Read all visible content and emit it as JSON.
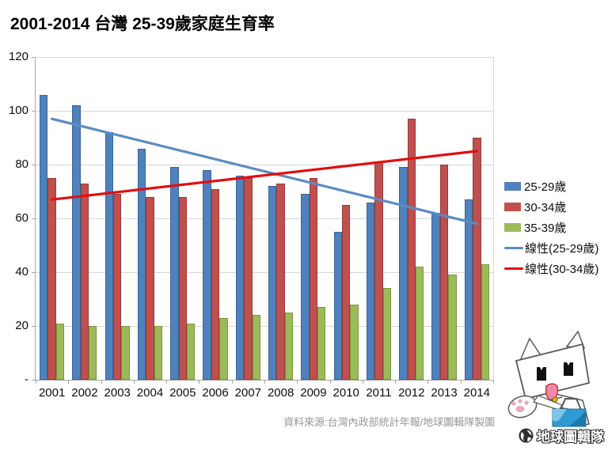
{
  "title": "2001-2014 台灣 25-39歲家庭生育率",
  "source_note": "資料來源:台灣內政部統計年報/地球圖輯隊製圖",
  "watermark": {
    "logo_text": "地球圖輯隊"
  },
  "colors": {
    "bar_blue": "#4F81BD",
    "bar_red": "#C0504D",
    "bar_green": "#9BBB59",
    "trend_blue": "#5B8BC4",
    "trend_red": "#E01010",
    "gridline": "#D6D6D6",
    "axis": "#A6A6A6",
    "source_text": "#969696"
  },
  "legend": {
    "items": [
      {
        "label": "25-29歲",
        "type": "bar",
        "color": "#4F81BD"
      },
      {
        "label": "30-34歲",
        "type": "bar",
        "color": "#C0504D"
      },
      {
        "label": "35-39歲",
        "type": "bar",
        "color": "#9BBB59"
      },
      {
        "label": "線性(25-29歲)",
        "type": "line",
        "color": "#5B8BC4"
      },
      {
        "label": "線性(30-34歲)",
        "type": "line",
        "color": "#E01010"
      }
    ]
  },
  "chart_data": {
    "type": "bar",
    "title": "2001-2014 台灣 25-39歲家庭生育率",
    "categories": [
      "2001",
      "2002",
      "2003",
      "2004",
      "2005",
      "2006",
      "2007",
      "2008",
      "2009",
      "2010",
      "2011",
      "2012",
      "2013",
      "2014"
    ],
    "series": [
      {
        "name": "25-29歲",
        "type": "bar",
        "color": "#4F81BD",
        "border": "#3B6596",
        "values": [
          106,
          102,
          92,
          86,
          79,
          78,
          76,
          72,
          69,
          55,
          66,
          79,
          62,
          67
        ]
      },
      {
        "name": "30-34歲",
        "type": "bar",
        "color": "#C0504D",
        "border": "#953C3A",
        "values": [
          75,
          73,
          69,
          68,
          68,
          71,
          75,
          73,
          75,
          65,
          81,
          97,
          80,
          90
        ]
      },
      {
        "name": "35-39歲",
        "type": "bar",
        "color": "#9BBB59",
        "border": "#79953F",
        "values": [
          21,
          20,
          20,
          20,
          21,
          23,
          24,
          25,
          27,
          28,
          34,
          42,
          39,
          43
        ]
      }
    ],
    "trendlines": [
      {
        "name": "線性(25-29歲)",
        "color": "#5B8BC4",
        "start_value": 97,
        "end_value": 58
      },
      {
        "name": "線性(30-34歲)",
        "color": "#E01010",
        "start_value": 67,
        "end_value": 85
      }
    ],
    "xlabel": "",
    "ylabel": "",
    "ylim": [
      0,
      120
    ],
    "y_tick_step": 20,
    "y_tick_labels": [
      "-",
      "20",
      "40",
      "60",
      "80",
      "100",
      "120"
    ],
    "grid": true,
    "legend_position": "right"
  }
}
